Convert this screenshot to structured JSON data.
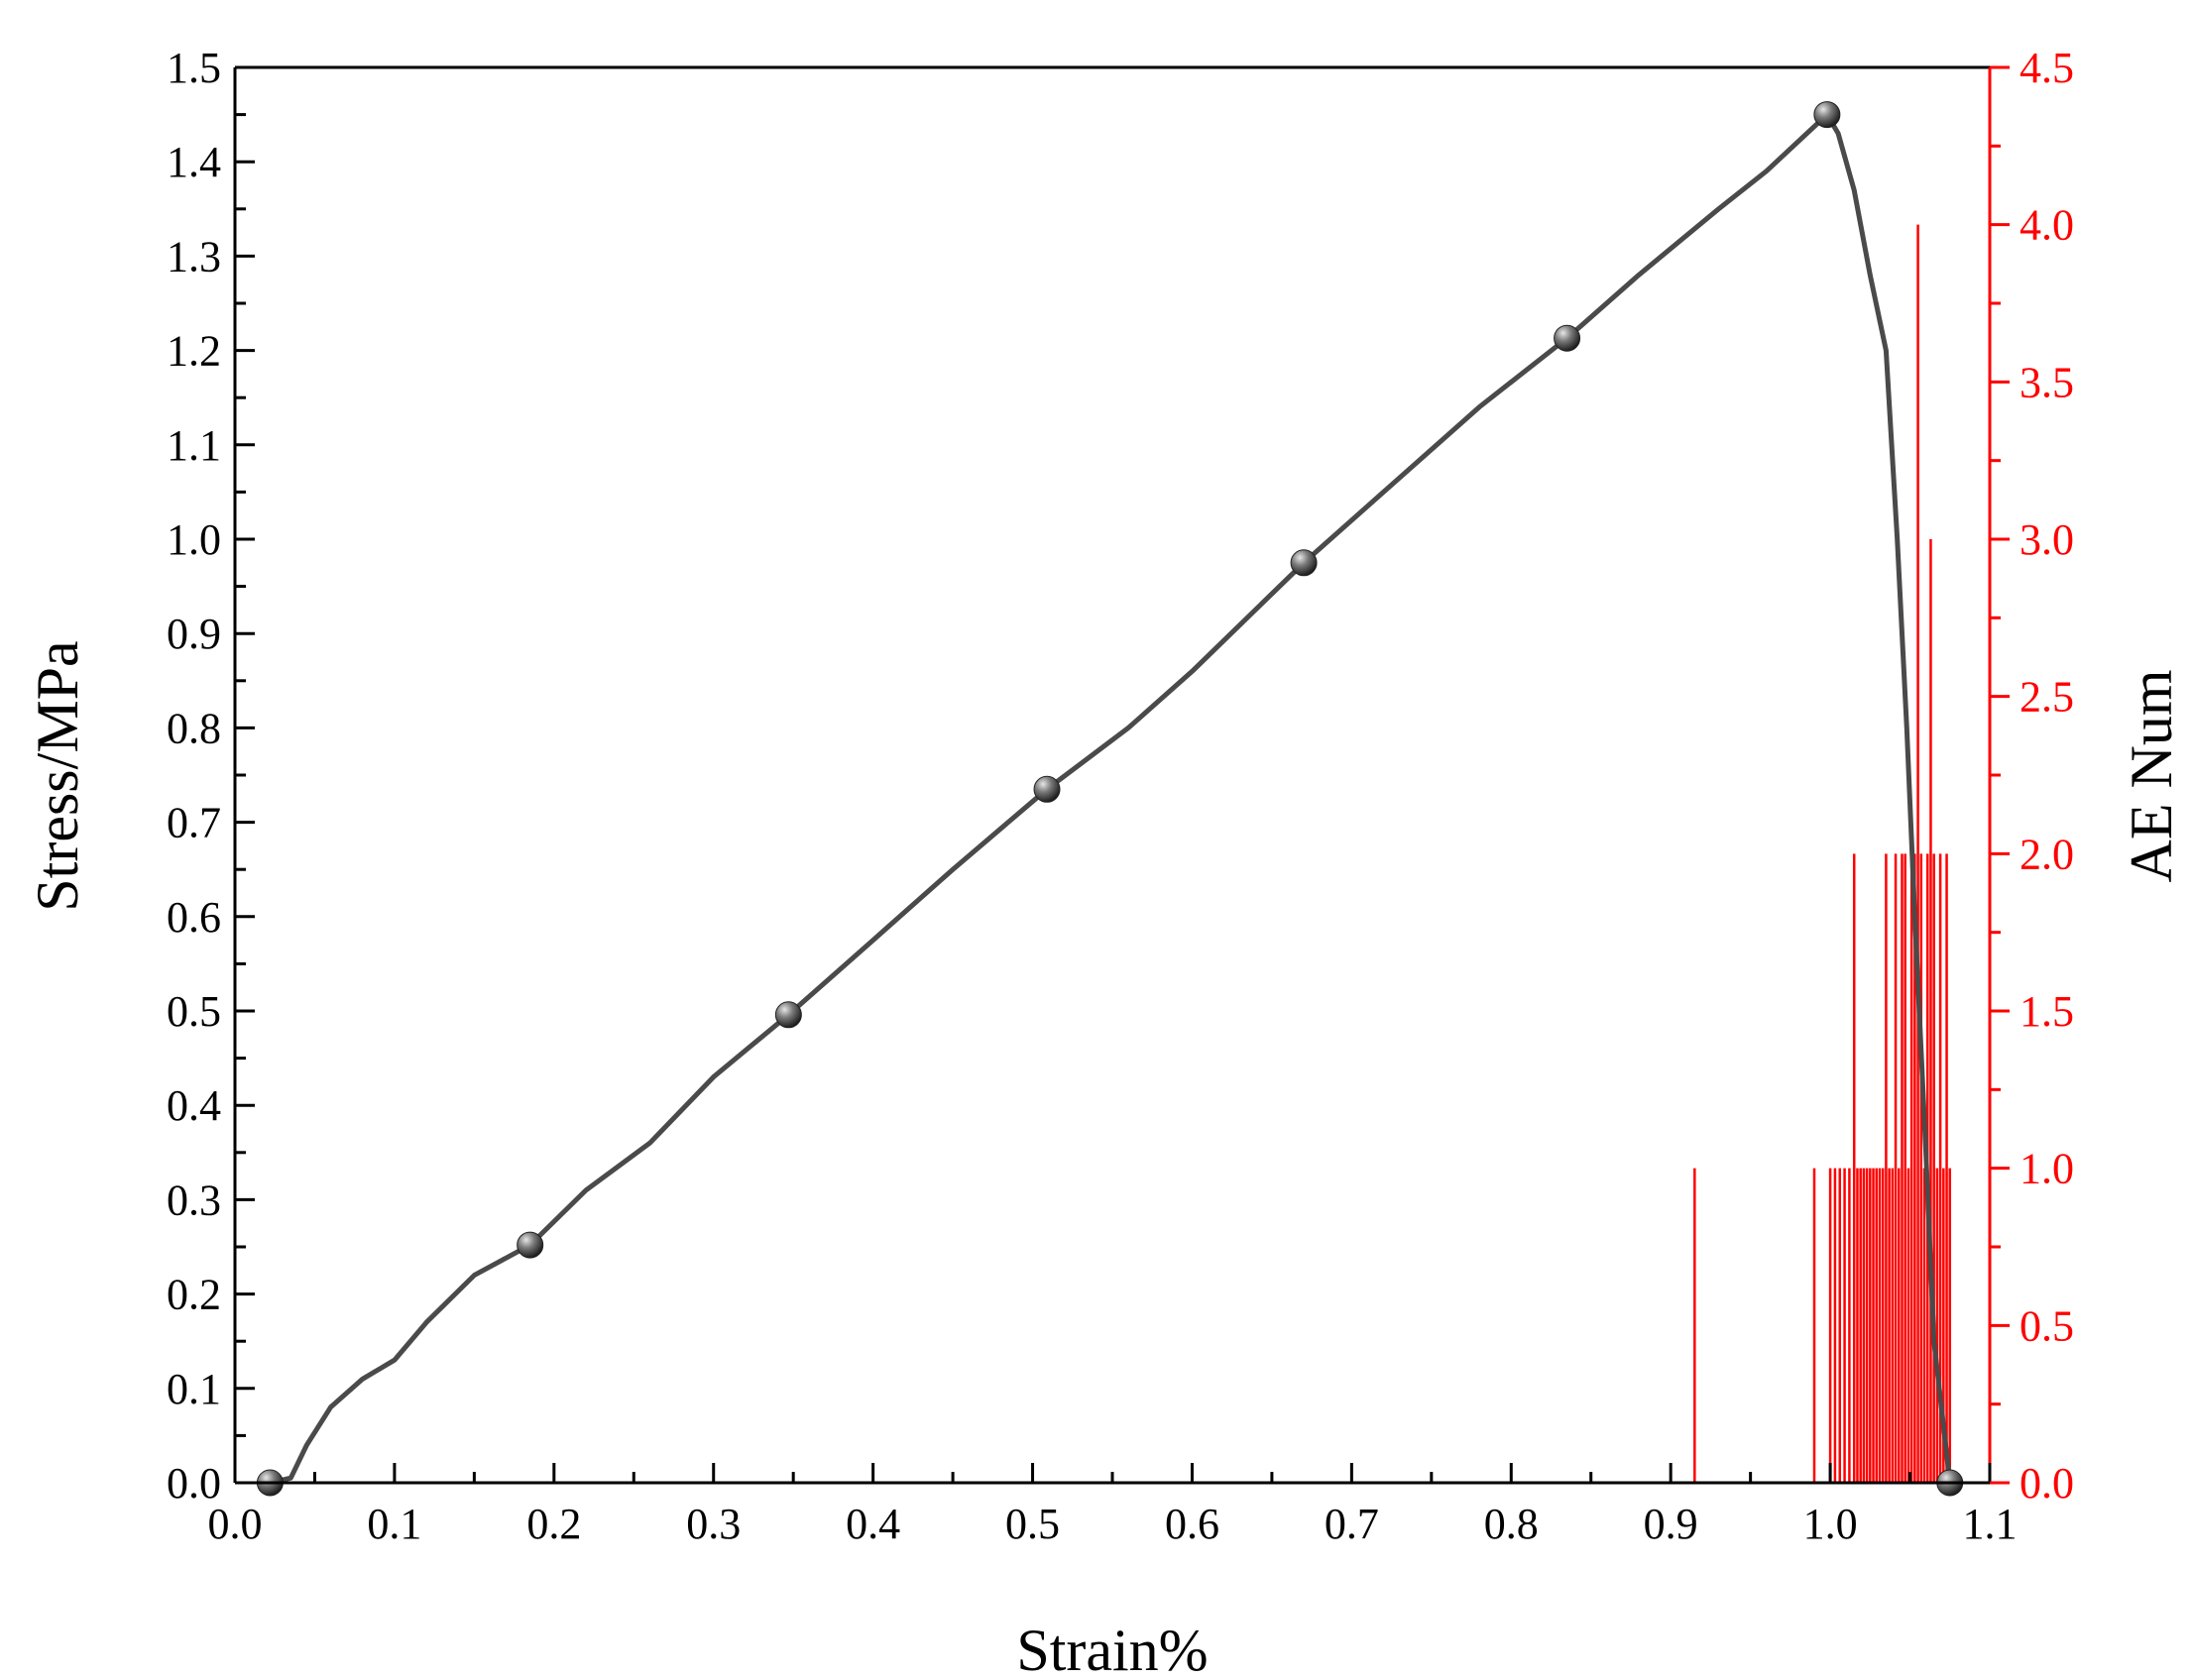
{
  "chart_data": {
    "type": "line",
    "xlabel": "Strain%",
    "ylabel": "Stress/MPa",
    "y2label": "AE Num",
    "xlim": [
      0.0,
      1.1
    ],
    "ylim": [
      0.0,
      1.5
    ],
    "y2lim": [
      0.0,
      4.5
    ],
    "x_ticks": [
      "0.0",
      "0.1",
      "0.2",
      "0.3",
      "0.4",
      "0.5",
      "0.6",
      "0.7",
      "0.8",
      "0.9",
      "1.0",
      "1.1"
    ],
    "y_ticks": [
      "0.0",
      "0.1",
      "0.2",
      "0.3",
      "0.4",
      "0.5",
      "0.6",
      "0.7",
      "0.8",
      "0.9",
      "1.0",
      "1.1",
      "1.2",
      "1.3",
      "1.4",
      "1.5"
    ],
    "y2_ticks": [
      "0.0",
      "0.5",
      "1.0",
      "1.5",
      "2.0",
      "2.5",
      "3.0",
      "3.5",
      "4.0",
      "4.5"
    ],
    "grid": false,
    "colors": {
      "stress": "#4a4a4a",
      "ae": "#ff0000",
      "axis": "#000000"
    },
    "series": [
      {
        "axis": "left",
        "x": [
          0.022,
          0.035,
          0.045,
          0.06,
          0.08,
          0.1,
          0.12,
          0.15,
          0.185,
          0.22,
          0.26,
          0.3,
          0.347,
          0.4,
          0.45,
          0.509,
          0.56,
          0.6,
          0.67,
          0.72,
          0.78,
          0.835,
          0.88,
          0.93,
          0.96,
          0.998,
          1.005,
          1.015,
          1.025,
          1.035,
          1.042,
          1.048,
          1.053,
          1.06,
          1.065,
          1.075
        ],
        "values": [
          0.0,
          0.005,
          0.04,
          0.08,
          0.11,
          0.13,
          0.17,
          0.22,
          0.252,
          0.31,
          0.36,
          0.43,
          0.496,
          0.575,
          0.65,
          0.735,
          0.8,
          0.86,
          0.975,
          1.05,
          1.14,
          1.213,
          1.28,
          1.35,
          1.39,
          1.45,
          1.43,
          1.37,
          1.28,
          1.2,
          1.0,
          0.8,
          0.6,
          0.35,
          0.15,
          0.0
        ]
      },
      {
        "axis": "left",
        "marker": "sphere",
        "x": [
          0.022,
          0.185,
          0.347,
          0.509,
          0.67,
          0.835,
          0.998,
          1.075
        ],
        "values": [
          0.0,
          0.252,
          0.496,
          0.735,
          0.975,
          1.213,
          1.45,
          0.0
        ]
      },
      {
        "axis": "right",
        "type": "bar",
        "x": [
          0.915,
          0.99,
          1.0,
          1.003,
          1.006,
          1.009,
          1.012,
          1.015,
          1.017,
          1.019,
          1.021,
          1.023,
          1.025,
          1.027,
          1.029,
          1.031,
          1.033,
          1.035,
          1.037,
          1.039,
          1.041,
          1.043,
          1.045,
          1.047,
          1.049,
          1.051,
          1.053,
          1.055,
          1.057,
          1.059,
          1.061,
          1.063,
          1.065,
          1.067,
          1.069,
          1.071,
          1.073,
          1.075
        ],
        "values": [
          1,
          1,
          1,
          1,
          1,
          1,
          1,
          2,
          1,
          1,
          1,
          1,
          1,
          1,
          1,
          1,
          1,
          2,
          1,
          1,
          2,
          1,
          2,
          2,
          1,
          2,
          2,
          4,
          2,
          1,
          2,
          3,
          2,
          1,
          2,
          1,
          2,
          1
        ]
      }
    ]
  }
}
